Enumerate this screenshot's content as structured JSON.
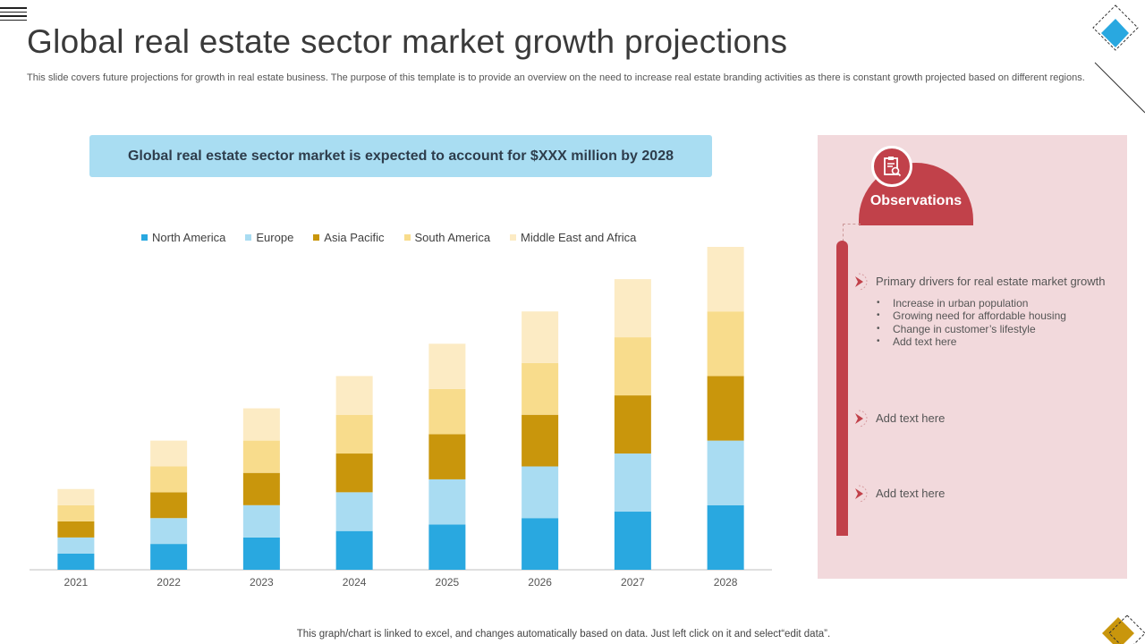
{
  "header": {
    "title": "Global real estate sector market growth projections",
    "subtitle": "This slide covers future projections for growth in real estate business. The purpose of this template is to provide an overview on the need to increase real estate branding activities as there is constant growth projected based on different regions."
  },
  "banner": {
    "text": "Global real estate sector market is expected to account for $XXX million by 2028"
  },
  "colors": {
    "north_america": "#29a8e0",
    "europe": "#a9dcf2",
    "asia_pacific": "#c9960c",
    "south_america": "#f8dc8c",
    "middle_east_africa": "#fcebc4",
    "accent_red": "#c1414a",
    "panel_bg": "#f2d9dc",
    "banner_bg": "#a9ddf2"
  },
  "chart_data": {
    "type": "bar",
    "stacked": true,
    "title": "",
    "xlabel": "",
    "ylabel": "",
    "categories": [
      "2021",
      "2022",
      "2023",
      "2024",
      "2025",
      "2026",
      "2027",
      "2028"
    ],
    "series": [
      {
        "name": "North America",
        "color": "#29a8e0",
        "values": [
          2.5,
          4,
          5,
          6,
          7,
          8,
          9,
          10
        ]
      },
      {
        "name": "Europe",
        "color": "#a9dcf2",
        "values": [
          2.5,
          4,
          5,
          6,
          7,
          8,
          9,
          10
        ]
      },
      {
        "name": "Asia Pacific",
        "color": "#c9960c",
        "values": [
          2.5,
          4,
          5,
          6,
          7,
          8,
          9,
          10
        ]
      },
      {
        "name": "South America",
        "color": "#f8dc8c",
        "values": [
          2.5,
          4,
          5,
          6,
          7,
          8,
          9,
          10
        ]
      },
      {
        "name": "Middle East and Africa",
        "color": "#fcebc4",
        "values": [
          2.5,
          4,
          5,
          6,
          7,
          8,
          9,
          10
        ]
      }
    ],
    "ylim": [
      0,
      50
    ],
    "grid": false,
    "legend": "top"
  },
  "observations": {
    "title": "Observations",
    "items": [
      {
        "heading": "Primary drivers for real estate market growth",
        "bullets": [
          "Increase in urban population",
          "Growing need for affordable housing",
          "Change in customer’s lifestyle",
          "Add text here"
        ]
      },
      {
        "heading": "Add text here"
      },
      {
        "heading": "Add text here"
      }
    ]
  },
  "footer": {
    "note": "This graph/chart is linked to excel,  and changes automatically based on data. Just left click on it and select“edit data”."
  }
}
